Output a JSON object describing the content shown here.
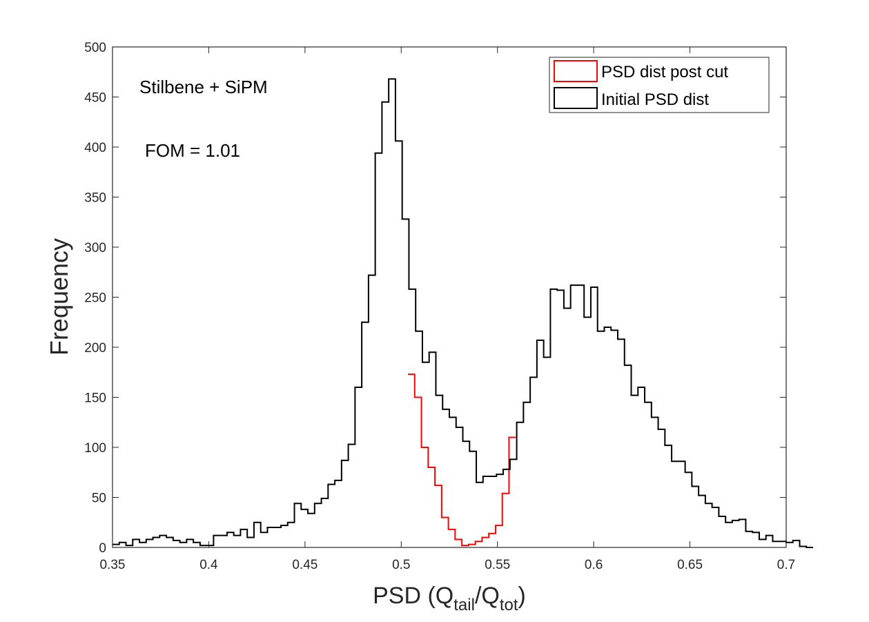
{
  "chart_data": {
    "type": "histogram",
    "xlabel": "PSD",
    "xlabel_parts": [
      "PSD (Q",
      "tail",
      "/Q",
      "tot",
      ")"
    ],
    "ylabel": "Frequency",
    "xlim": [
      0.35,
      0.7
    ],
    "ylim": [
      0,
      500
    ],
    "xticks": [
      0.35,
      0.4,
      0.45,
      0.5,
      0.55,
      0.6,
      0.65,
      0.7
    ],
    "xtick_labels": [
      "0.35",
      "0.4",
      "0.45",
      "0.5",
      "0.55",
      "0.6",
      "0.65",
      "0.7"
    ],
    "yticks": [
      0,
      50,
      100,
      150,
      200,
      250,
      300,
      350,
      400,
      450,
      500
    ],
    "ytick_labels": [
      "0",
      "50",
      "100",
      "150",
      "200",
      "250",
      "300",
      "350",
      "400",
      "450",
      "500"
    ],
    "grid": false,
    "legend_position": "top-right",
    "annotations": [
      "Stilbene + SiPM",
      "FOM = 1.01"
    ],
    "bin_width": 0.0035,
    "series": [
      {
        "name": "Initial PSD dist",
        "color": "#000000",
        "x_start": 0.35,
        "values": [
          3,
          5,
          2,
          8,
          5,
          8,
          10,
          12,
          10,
          7,
          5,
          8,
          5,
          2,
          2,
          12,
          12,
          15,
          12,
          18,
          10,
          25,
          15,
          20,
          20,
          22,
          25,
          44,
          38,
          34,
          44,
          49,
          63,
          67,
          87,
          103,
          160,
          225,
          272,
          394,
          445,
          468,
          406,
          328,
          258,
          216,
          185,
          195,
          152,
          138,
          130,
          120,
          106,
          96,
          65,
          71,
          71,
          73,
          78,
          88,
          125,
          145,
          170,
          207,
          190,
          258,
          257,
          239,
          262,
          262,
          230,
          260,
          216,
          220,
          217,
          208,
          182,
          152,
          160,
          145,
          130,
          118,
          102,
          86,
          86,
          75,
          61,
          52,
          44,
          40,
          31,
          25,
          27,
          28,
          16,
          15,
          8,
          12,
          6,
          6,
          5,
          7,
          1,
          0
        ]
      },
      {
        "name": "PSD dist post cut",
        "color": "#ff0000",
        "x_start": 0.5035,
        "values": [
          173,
          150,
          100,
          80,
          62,
          30,
          18,
          8,
          2,
          3,
          6,
          10,
          14,
          22,
          54,
          110
        ]
      }
    ]
  }
}
